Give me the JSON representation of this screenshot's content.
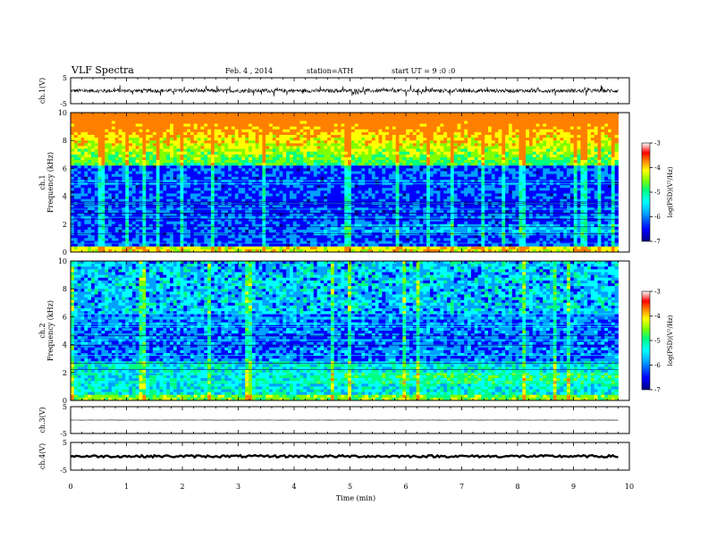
{
  "header": {
    "title": "VLF Spectra",
    "date": "Feb. 4  , 2014",
    "station": "station=ATH",
    "start": "start  UT =   9 :0  :0"
  },
  "chart_data": [
    {
      "type": "line",
      "panel": "ch1-waveform",
      "ylabel": "ch.1(V)",
      "ylim": [
        -5,
        5
      ],
      "yticks": [
        "5",
        "-5"
      ],
      "xlim": [
        0,
        9.8
      ],
      "baseline": 0,
      "amplitude": 0.7
    },
    {
      "type": "heatmap",
      "panel": "ch1-spectrogram",
      "ylabel": "ch.1\nFrequency  (kHz)",
      "ylim": [
        0,
        10
      ],
      "yticks": [
        "0",
        "2",
        "4",
        "6",
        "8",
        "10"
      ],
      "xlim": [
        0,
        9.8
      ],
      "colorbar": {
        "label": "log(PSD)(V²/Hz)",
        "range": [
          -7,
          -3
        ],
        "ticks": [
          "-3",
          "-4",
          "-5",
          "-6",
          "-7"
        ]
      }
    },
    {
      "type": "heatmap",
      "panel": "ch2-spectrogram",
      "ylabel": "ch.2\nFrequency  (kHz)",
      "ylim": [
        0,
        10
      ],
      "yticks": [
        "0",
        "2",
        "4",
        "6",
        "8",
        "10"
      ],
      "xlim": [
        0,
        9.8
      ],
      "colorbar": {
        "label": "log(PSD)(V²/Hz)",
        "range": [
          -7,
          -3
        ],
        "ticks": [
          "-3",
          "-4",
          "-5",
          "-6",
          "-7"
        ]
      }
    },
    {
      "type": "line",
      "panel": "ch3-waveform",
      "ylabel": "ch.3(V)",
      "ylim": [
        -5,
        5
      ],
      "yticks": [
        "5",
        "-5"
      ],
      "xlim": [
        0,
        9.8
      ],
      "baseline": 0,
      "amplitude": 0.05
    },
    {
      "type": "line",
      "panel": "ch4-waveform",
      "ylabel": "ch.4(V)",
      "ylim": [
        -5,
        5
      ],
      "yticks": [
        "5",
        "-5"
      ],
      "xlim": [
        0,
        9.8
      ],
      "baseline": 0,
      "amplitude": 0.4
    }
  ],
  "xaxis": {
    "label": "Time  (min)",
    "range": [
      0,
      10
    ],
    "ticks": [
      "0",
      "1",
      "2",
      "3",
      "4",
      "5",
      "6",
      "7",
      "8",
      "9",
      "10"
    ]
  },
  "colors": {
    "colormap": [
      "#000080",
      "#0000ff",
      "#00a0ff",
      "#00ffff",
      "#00ff80",
      "#80ff00",
      "#ffff00",
      "#ff8000",
      "#ff0000",
      "#ffffff"
    ]
  }
}
